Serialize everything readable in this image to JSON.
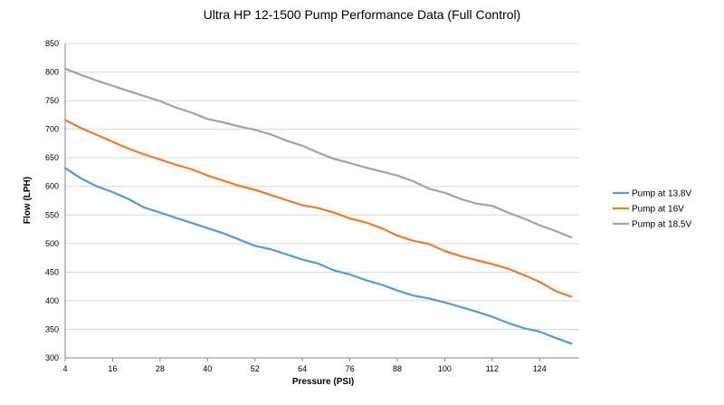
{
  "chart_data": {
    "type": "line",
    "title": "Ultra HP 12-1500 Pump Performance Data (Full Control)",
    "xlabel": "Pressure (PSI)",
    "ylabel": "Flow (LPH)",
    "xlim": [
      4,
      134
    ],
    "ylim": [
      300,
      850
    ],
    "x_ticks": [
      4,
      16,
      28,
      40,
      52,
      64,
      76,
      88,
      100,
      112,
      124
    ],
    "y_ticks": [
      300,
      350,
      400,
      450,
      500,
      550,
      600,
      650,
      700,
      750,
      800,
      850
    ],
    "grid": "horizontal",
    "legend": "right",
    "x": [
      4,
      8,
      12,
      16,
      20,
      24,
      28,
      32,
      36,
      40,
      44,
      48,
      52,
      56,
      60,
      64,
      68,
      72,
      76,
      80,
      84,
      88,
      92,
      96,
      100,
      104,
      108,
      112,
      116,
      120,
      124,
      128,
      132
    ],
    "series": [
      {
        "name": "Pump at 13.8V",
        "color": "#5b9bd5",
        "values": [
          632,
          614,
          600,
          590,
          578,
          563,
          554,
          545,
          536,
          527,
          518,
          507,
          496,
          490,
          481,
          472,
          465,
          453,
          446,
          436,
          428,
          418,
          409,
          404,
          397,
          389,
          381,
          372,
          361,
          352,
          346,
          335,
          325
        ]
      },
      {
        "name": "Pump at 16V",
        "color": "#ed7d31",
        "values": [
          716,
          702,
          690,
          678,
          666,
          656,
          647,
          638,
          630,
          619,
          610,
          601,
          594,
          585,
          576,
          567,
          562,
          554,
          544,
          537,
          527,
          514,
          505,
          499,
          487,
          478,
          471,
          464,
          456,
          445,
          433,
          417,
          407
        ]
      },
      {
        "name": "Pump at 18.5V",
        "color": "#a5a5a5",
        "values": [
          806,
          795,
          785,
          776,
          767,
          758,
          749,
          738,
          729,
          718,
          712,
          705,
          699,
          691,
          680,
          671,
          659,
          648,
          641,
          633,
          626,
          619,
          609,
          596,
          589,
          578,
          570,
          566,
          554,
          544,
          532,
          522,
          511
        ]
      }
    ]
  }
}
